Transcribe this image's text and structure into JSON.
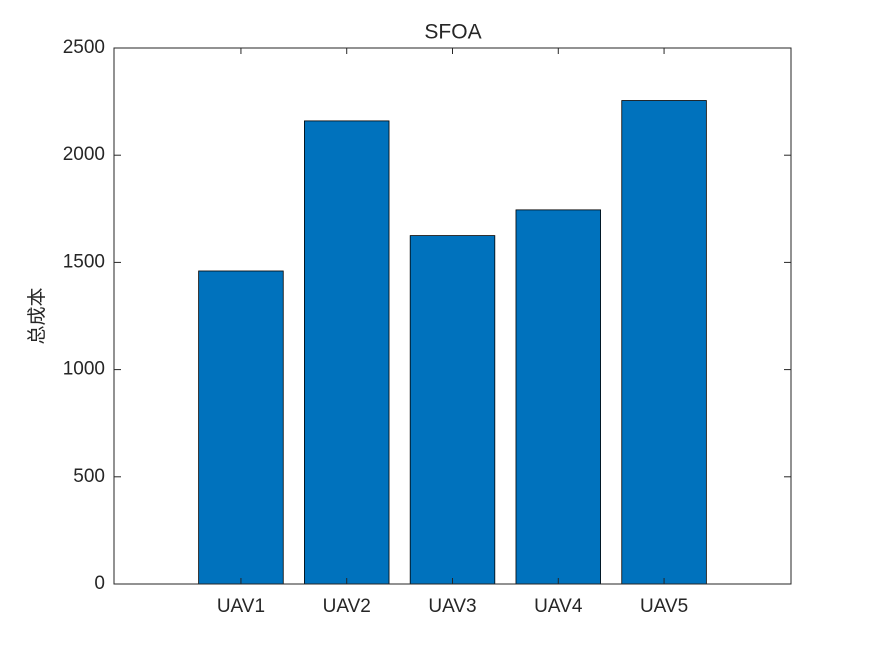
{
  "chart_data": {
    "type": "bar",
    "title": "SFOA",
    "ylabel": "总成本",
    "categories": [
      "UAV1",
      "UAV2",
      "UAV3",
      "UAV4",
      "UAV5"
    ],
    "values": [
      1460,
      2160,
      1625,
      1745,
      2255
    ],
    "color": "#0072bd",
    "ylim": [
      0,
      2500
    ],
    "yticks": [
      0,
      500,
      1000,
      1500,
      2000,
      2500
    ]
  }
}
